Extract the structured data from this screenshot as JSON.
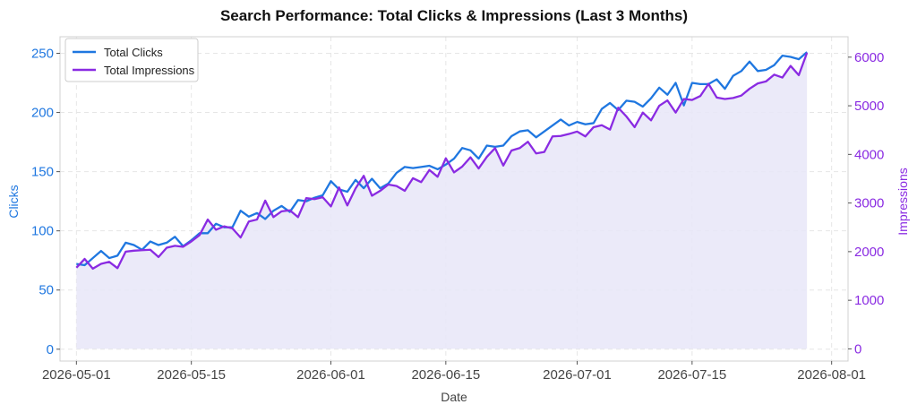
{
  "chart_data": {
    "type": "line",
    "title": "Search Performance: Total Clicks & Impressions (Last 3 Months)",
    "xlabel": "Date",
    "ylabel_left": "Clicks",
    "ylabel_right": "Impressions",
    "x_start": "2026-05-01",
    "x_ticks": [
      "2026-05-01",
      "2026-05-15",
      "2026-06-01",
      "2026-06-15",
      "2026-07-01",
      "2026-07-15",
      "2026-08-01"
    ],
    "xlim": [
      "2026-04-29",
      "2026-08-03"
    ],
    "ylim_left": [
      -10,
      264
    ],
    "ylim_right": [
      -250,
      6420
    ],
    "yticks_left": [
      0,
      50,
      100,
      150,
      200,
      250
    ],
    "yticks_right": [
      0,
      1000,
      2000,
      3000,
      4000,
      5000,
      6000
    ],
    "grid": true,
    "legend_position": "top-left",
    "colors": {
      "clicks": "#1f77e0",
      "impressions": "#8a2be2",
      "fill": "#e8e6f8"
    },
    "series": [
      {
        "name": "Total Clicks",
        "axis": "left",
        "values": [
          72,
          71,
          77,
          83,
          77,
          79,
          90,
          88,
          84,
          91,
          88,
          90,
          95,
          87,
          92,
          98,
          98,
          106,
          103,
          103,
          117,
          112,
          115,
          110,
          117,
          121,
          116,
          126,
          125,
          128,
          130,
          142,
          135,
          133,
          143,
          136,
          144,
          136,
          140,
          149,
          154,
          153,
          154,
          155,
          152,
          156,
          161,
          170,
          168,
          161,
          172,
          171,
          172,
          180,
          184,
          185,
          179,
          184,
          189,
          194,
          189,
          192,
          190,
          191,
          203,
          208,
          202,
          210,
          209,
          205,
          212,
          221,
          215,
          225,
          206,
          225,
          224,
          224,
          228,
          220,
          231,
          235,
          243,
          235,
          236,
          240,
          248,
          247,
          245,
          251
        ]
      },
      {
        "name": "Total Impressions",
        "axis": "right",
        "values": [
          1670,
          1850,
          1650,
          1750,
          1790,
          1660,
          2000,
          2020,
          2030,
          2040,
          1890,
          2080,
          2120,
          2100,
          2210,
          2340,
          2660,
          2450,
          2520,
          2480,
          2290,
          2620,
          2660,
          3050,
          2710,
          2830,
          2850,
          2710,
          3100,
          3080,
          3120,
          2930,
          3320,
          2950,
          3300,
          3560,
          3150,
          3250,
          3380,
          3350,
          3250,
          3510,
          3430,
          3680,
          3540,
          3920,
          3630,
          3750,
          3940,
          3710,
          3950,
          4130,
          3770,
          4080,
          4130,
          4260,
          4020,
          4050,
          4370,
          4380,
          4420,
          4470,
          4370,
          4560,
          4600,
          4510,
          4960,
          4780,
          4560,
          4860,
          4700,
          5000,
          5110,
          4860,
          5140,
          5120,
          5200,
          5450,
          5170,
          5140,
          5160,
          5210,
          5350,
          5460,
          5500,
          5640,
          5580,
          5820,
          5630,
          6090
        ]
      }
    ]
  }
}
